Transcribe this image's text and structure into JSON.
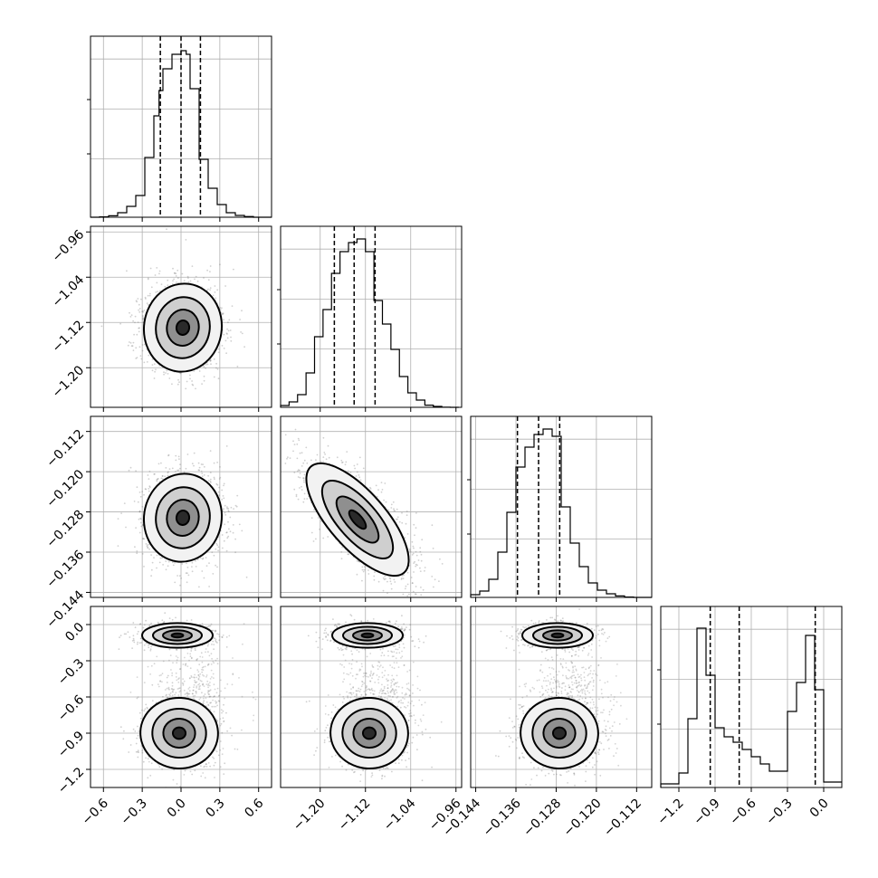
{
  "chart_data": {
    "type": "corner",
    "parameters": [
      {
        "range": [
          -0.7,
          0.7
        ],
        "ticks": [
          -0.6,
          -0.3,
          0.0,
          0.3,
          0.6
        ],
        "tick_labels": [
          "−0.6",
          "−0.3",
          "0.0",
          "0.3",
          "0.6"
        ],
        "quantiles": [
          -0.16,
          0.0,
          0.15
        ],
        "hist_bins": [
          -0.7,
          -0.63,
          -0.56,
          -0.49,
          -0.42,
          -0.35,
          -0.28,
          -0.21,
          -0.17,
          -0.14,
          -0.07,
          0.0,
          0.04,
          0.07,
          0.14,
          0.21,
          0.28,
          0.35,
          0.42,
          0.49,
          0.56,
          0.63,
          0.7
        ],
        "hist_counts": [
          0,
          0.002,
          0.008,
          0.025,
          0.06,
          0.12,
          0.33,
          0.56,
          0.7,
          0.82,
          0.9,
          0.92,
          0.9,
          0.71,
          0.32,
          0.16,
          0.07,
          0.025,
          0.01,
          0.004,
          0,
          0
        ]
      },
      {
        "range": [
          -1.27,
          -0.95
        ],
        "ticks": [
          -1.2,
          -1.12,
          -1.04,
          -0.96
        ],
        "tick_labels": [
          "−1.20",
          "−1.12",
          "−1.04",
          "−0.96"
        ],
        "quantiles": [
          -1.175,
          -1.14,
          -1.103
        ],
        "hist_bins": [
          -1.27,
          -1.255,
          -1.24,
          -1.225,
          -1.21,
          -1.195,
          -1.18,
          -1.165,
          -1.15,
          -1.135,
          -1.12,
          -1.105,
          -1.09,
          -1.075,
          -1.06,
          -1.045,
          -1.03,
          -1.015,
          -1.0,
          -0.985,
          -0.97,
          -0.955
        ],
        "hist_counts": [
          0.01,
          0.03,
          0.07,
          0.19,
          0.39,
          0.54,
          0.74,
          0.86,
          0.91,
          0.93,
          0.86,
          0.59,
          0.46,
          0.32,
          0.17,
          0.08,
          0.04,
          0.012,
          0.005,
          0.001,
          0
        ]
      },
      {
        "range": [
          -0.145,
          -0.109
        ],
        "ticks": [
          -0.144,
          -0.136,
          -0.128,
          -0.12,
          -0.112
        ],
        "tick_labels": [
          "−0.144",
          "−0.136",
          "−0.128",
          "−0.120",
          "−0.112"
        ],
        "quantiles": [
          -0.1357,
          -0.1315,
          -0.1273
        ],
        "hist_bins": [
          -0.145,
          -0.1432,
          -0.1414,
          -0.1396,
          -0.1378,
          -0.136,
          -0.1342,
          -0.1324,
          -0.1306,
          -0.1288,
          -0.127,
          -0.1252,
          -0.1234,
          -0.1216,
          -0.1198,
          -0.118,
          -0.1162,
          -0.1144,
          -0.1126,
          -0.1108,
          -0.109
        ],
        "hist_counts": [
          0.015,
          0.035,
          0.1,
          0.25,
          0.47,
          0.72,
          0.83,
          0.9,
          0.93,
          0.89,
          0.5,
          0.3,
          0.17,
          0.08,
          0.04,
          0.02,
          0.008,
          0.002,
          0,
          0
        ]
      },
      {
        "range": [
          -1.35,
          0.15
        ],
        "ticks": [
          -1.2,
          -0.9,
          -0.6,
          -0.3,
          0.0
        ],
        "tick_labels": [
          "−1.2",
          "−0.9",
          "−0.6",
          "−0.3",
          "0.0"
        ],
        "quantiles": [
          -0.94,
          -0.7,
          -0.07
        ],
        "hist_bins": [
          -1.35,
          -1.275,
          -1.2,
          -1.125,
          -1.05,
          -0.975,
          -0.9,
          -0.825,
          -0.75,
          -0.675,
          -0.6,
          -0.525,
          -0.45,
          -0.375,
          -0.3,
          -0.225,
          -0.15,
          -0.075,
          0.0,
          0.075,
          0.15
        ],
        "hist_counts": [
          0.02,
          0.02,
          0.08,
          0.38,
          0.88,
          0.62,
          0.33,
          0.28,
          0.25,
          0.21,
          0.17,
          0.13,
          0.09,
          0.09,
          0.42,
          0.58,
          0.84,
          0.54,
          0.03,
          0.03
        ]
      }
    ],
    "contour_levels": 4,
    "scatter": "grey points outside outermost contour",
    "grid": true
  }
}
